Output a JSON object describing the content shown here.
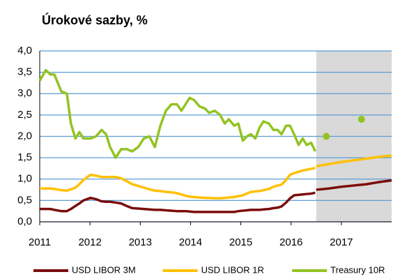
{
  "chart_data": {
    "type": "line",
    "title": "Úrokové sazby, %",
    "xlim": [
      2011,
      2018
    ],
    "xticks": [
      2011,
      2012,
      2013,
      2014,
      2015,
      2016,
      2017
    ],
    "ylim": [
      0,
      4
    ],
    "yticks": [
      {
        "value": 0,
        "label": "0,0"
      },
      {
        "value": 0.5,
        "label": "0,5"
      },
      {
        "value": 1,
        "label": "1,0"
      },
      {
        "value": 1.5,
        "label": "1,5"
      },
      {
        "value": 2,
        "label": "2,0"
      },
      {
        "value": 2.5,
        "label": "2,5"
      },
      {
        "value": 3,
        "label": "3,0"
      },
      {
        "value": 3.5,
        "label": "3,5"
      },
      {
        "value": 4,
        "label": "4,0"
      }
    ],
    "grid": true,
    "grid_color": "#5b9bd5",
    "shaded_region": [
      2016.5,
      2018
    ],
    "shaded_color": "#d9d9d9",
    "legend": "bottom",
    "x": [
      2011.0,
      2011.12,
      2011.21,
      2011.29,
      2011.43,
      2011.54,
      2011.62,
      2011.71,
      2011.79,
      2011.87,
      2012.01,
      2012.12,
      2012.23,
      2012.32,
      2012.4,
      2012.51,
      2012.62,
      2012.73,
      2012.84,
      2012.96,
      2013.07,
      2013.18,
      2013.29,
      2013.4,
      2013.51,
      2013.62,
      2013.73,
      2013.82,
      2013.9,
      2013.98,
      2014.07,
      2014.18,
      2014.29,
      2014.37,
      2014.48,
      2014.59,
      2014.68,
      2014.76,
      2014.87,
      2014.95,
      2015.04,
      2015.12,
      2015.2,
      2015.29,
      2015.37,
      2015.45,
      2015.56,
      2015.65,
      2015.73,
      2015.81,
      2015.9,
      2015.98,
      2016.06,
      2016.15,
      2016.23,
      2016.31,
      2016.4,
      2016.48
    ],
    "series": [
      {
        "name": "USD LIBOR 3M",
        "color": "#7b0c0c",
        "values": [
          0.3,
          0.3,
          0.3,
          0.28,
          0.25,
          0.25,
          0.3,
          0.37,
          0.43,
          0.5,
          0.56,
          0.53,
          0.48,
          0.47,
          0.47,
          0.45,
          0.43,
          0.37,
          0.32,
          0.31,
          0.3,
          0.29,
          0.28,
          0.28,
          0.27,
          0.26,
          0.25,
          0.25,
          0.25,
          0.24,
          0.23,
          0.23,
          0.23,
          0.23,
          0.23,
          0.23,
          0.23,
          0.23,
          0.23,
          0.25,
          0.26,
          0.27,
          0.28,
          0.28,
          0.28,
          0.29,
          0.3,
          0.32,
          0.33,
          0.36,
          0.45,
          0.55,
          0.62,
          0.63,
          0.64,
          0.65,
          0.66,
          0.68
        ],
        "forecast_style": "line",
        "forecast_x": [
          2016.5,
          2016.75,
          2017,
          2017.25,
          2017.5,
          2017.75,
          2018
        ],
        "forecast_values": [
          0.75,
          0.78,
          0.82,
          0.85,
          0.88,
          0.93,
          0.97
        ]
      },
      {
        "name": "USD LIBOR 1R",
        "color": "#ffc000",
        "values": [
          0.78,
          0.78,
          0.78,
          0.77,
          0.74,
          0.73,
          0.76,
          0.8,
          0.88,
          0.98,
          1.1,
          1.08,
          1.05,
          1.05,
          1.05,
          1.05,
          1.02,
          0.95,
          0.88,
          0.84,
          0.8,
          0.76,
          0.73,
          0.72,
          0.7,
          0.69,
          0.67,
          0.64,
          0.61,
          0.59,
          0.58,
          0.57,
          0.56,
          0.56,
          0.55,
          0.55,
          0.56,
          0.57,
          0.58,
          0.6,
          0.62,
          0.66,
          0.7,
          0.71,
          0.72,
          0.74,
          0.77,
          0.82,
          0.85,
          0.87,
          0.98,
          1.1,
          1.14,
          1.17,
          1.2,
          1.22,
          1.24,
          1.26
        ],
        "forecast_style": "line",
        "forecast_x": [
          2016.5,
          2016.75,
          2017,
          2017.25,
          2017.5,
          2017.75,
          2018
        ],
        "forecast_values": [
          1.3,
          1.35,
          1.4,
          1.44,
          1.48,
          1.52,
          1.55
        ]
      },
      {
        "name": "Treasury 10R",
        "color": "#92c322",
        "values": [
          3.3,
          3.55,
          3.45,
          3.45,
          3.05,
          3.0,
          2.3,
          1.95,
          2.1,
          1.95,
          1.95,
          2.0,
          2.15,
          2.05,
          1.75,
          1.5,
          1.7,
          1.7,
          1.65,
          1.75,
          1.95,
          2.0,
          1.75,
          2.25,
          2.6,
          2.75,
          2.75,
          2.6,
          2.75,
          2.9,
          2.85,
          2.7,
          2.65,
          2.55,
          2.6,
          2.5,
          2.3,
          2.4,
          2.25,
          2.3,
          1.9,
          2.0,
          2.05,
          1.95,
          2.2,
          2.35,
          2.3,
          2.15,
          2.15,
          2.05,
          2.25,
          2.25,
          2.05,
          1.8,
          1.95,
          1.8,
          1.85,
          1.65
        ],
        "forecast_style": "points",
        "forecast_x": [
          2016.7,
          2017.4
        ],
        "forecast_values": [
          2.0,
          2.4
        ]
      }
    ]
  }
}
